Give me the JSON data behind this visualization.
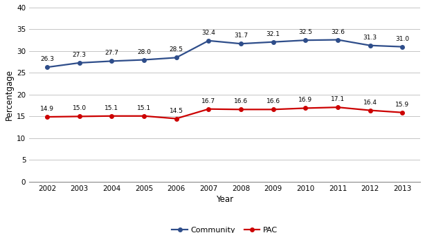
{
  "years": [
    2002,
    2003,
    2004,
    2005,
    2006,
    2007,
    2008,
    2009,
    2010,
    2011,
    2012,
    2013
  ],
  "community": [
    26.3,
    27.3,
    27.7,
    28.0,
    28.5,
    32.4,
    31.7,
    32.1,
    32.5,
    32.6,
    31.3,
    31.0
  ],
  "pac": [
    14.9,
    15.0,
    15.1,
    15.1,
    14.5,
    16.7,
    16.6,
    16.6,
    16.9,
    17.1,
    16.4,
    15.9
  ],
  "community_color": "#2e4d8a",
  "pac_color": "#cc0000",
  "ylabel": "Percentgage",
  "xlabel": "Year",
  "ylim": [
    0,
    40
  ],
  "yticks": [
    0,
    5,
    10,
    15,
    20,
    25,
    30,
    35,
    40
  ],
  "legend_community": "Community",
  "legend_pac": "PAC",
  "bg_color": "#ffffff",
  "grid_color": "#bbbbbb"
}
